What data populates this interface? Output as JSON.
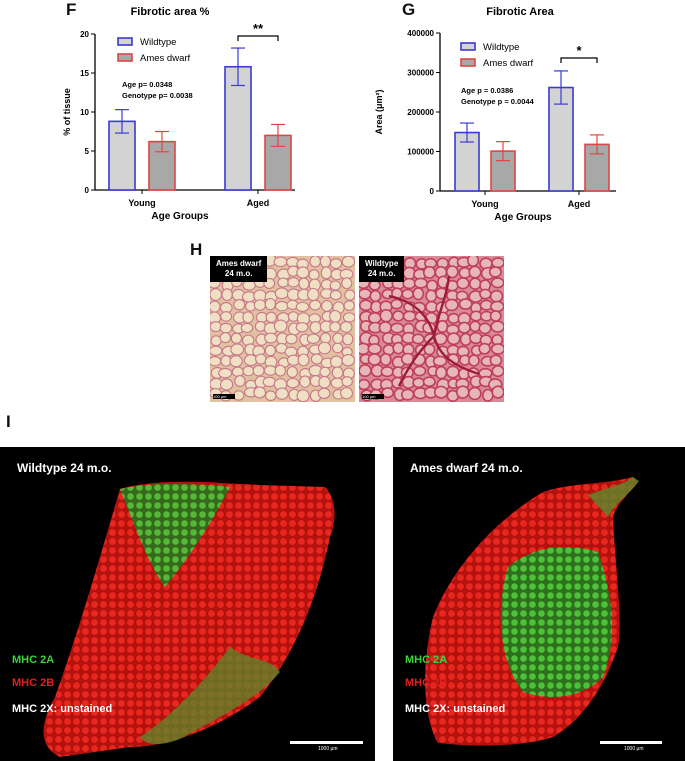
{
  "panels": {
    "f": "F",
    "g": "G",
    "h": "H",
    "i": "I"
  },
  "chart_data": [
    {
      "type": "bar",
      "title": "Fibrotic area  %",
      "xlabel": "Age  Groups",
      "ylabel": "% of tissue",
      "categories": [
        "Young",
        "Aged"
      ],
      "ylim": [
        0,
        20
      ],
      "yticks": [
        0,
        5,
        10,
        15,
        20
      ],
      "series": [
        {
          "name": "Wildtype",
          "values": [
            8.8,
            15.8
          ],
          "errors": [
            1.5,
            2.4
          ],
          "edge": "#3a3ad6",
          "fill": "#d3d3d3"
        },
        {
          "name": "Ames dwarf",
          "values": [
            6.2,
            7.0
          ],
          "errors": [
            1.3,
            1.4
          ],
          "edge": "#e04545",
          "fill": "#a8a8a8"
        }
      ],
      "stats": [
        "Age          p= 0.0348",
        "Genotype  p= 0.0038"
      ],
      "significance": {
        "label": "**",
        "category": "Aged"
      },
      "legend": "top-left"
    },
    {
      "type": "bar",
      "title": "Fibrotic Area",
      "xlabel": "Age  Groups",
      "ylabel": "Area (μm²)",
      "categories": [
        "Young",
        "Aged"
      ],
      "ylim": [
        0,
        400000
      ],
      "yticks": [
        0,
        100000,
        200000,
        300000,
        400000
      ],
      "series": [
        {
          "name": "Wildtype",
          "values": [
            148000,
            262000
          ],
          "errors": [
            24000,
            42000
          ],
          "edge": "#3a3ad6",
          "fill": "#d3d3d3"
        },
        {
          "name": "Ames dwarf",
          "values": [
            101000,
            118000
          ],
          "errors": [
            24000,
            24000
          ],
          "edge": "#e04545",
          "fill": "#a8a8a8"
        }
      ],
      "stats": [
        "Age          p = 0.0386",
        "Genotype  p = 0.0044"
      ],
      "significance": {
        "label": "*",
        "category": "Aged"
      },
      "legend": "top-left"
    }
  ],
  "histology": {
    "left_tag": [
      "Ames dwarf",
      "24 m.o."
    ],
    "right_tag": [
      "Wildtype",
      "24 m.o."
    ],
    "left_scale": "100 μm",
    "right_scale": "100 μm"
  },
  "micrographs": {
    "left": {
      "title": "Wildtype 24 m.o.",
      "legend_2a": "MHC 2A",
      "legend_2b": "MHC 2B",
      "legend_2x": "MHC 2X: unstained",
      "scale": "1000 μm"
    },
    "right": {
      "title": "Ames dwarf 24 m.o.",
      "legend_2a": "MHC 2A",
      "legend_2b": "MHC 2B",
      "legend_2x": "MHC 2X: unstained",
      "scale": "1000 μm"
    }
  },
  "colors": {
    "wildtype": "#3a3ad6",
    "ames_dwarf": "#e04545",
    "green_stain": "#3bd33b",
    "red_stain": "#e0201e"
  }
}
